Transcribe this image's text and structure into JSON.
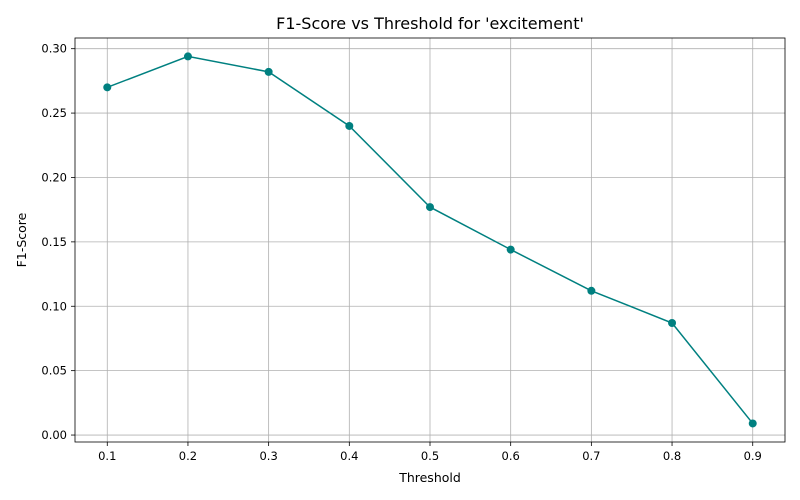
{
  "chart_data": {
    "type": "line",
    "title": "F1-Score vs Threshold for 'excitement'",
    "xlabel": "Threshold",
    "ylabel": "F1-Score",
    "x": [
      0.1,
      0.2,
      0.3,
      0.4,
      0.5,
      0.6,
      0.7,
      0.8,
      0.9
    ],
    "series": [
      {
        "values": [
          0.27,
          0.294,
          0.282,
          0.24,
          0.177,
          0.144,
          0.112,
          0.087,
          0.009
        ],
        "color": "#008080",
        "marker": "circle"
      }
    ],
    "xticks": [
      "0.1",
      "0.2",
      "0.3",
      "0.4",
      "0.5",
      "0.6",
      "0.7",
      "0.8",
      "0.9"
    ],
    "yticks": [
      "0.00",
      "0.05",
      "0.10",
      "0.15",
      "0.20",
      "0.25",
      "0.30"
    ],
    "xlim": [
      0.06,
      0.94
    ],
    "ylim": [
      -0.0054,
      0.3083
    ],
    "grid": true
  }
}
